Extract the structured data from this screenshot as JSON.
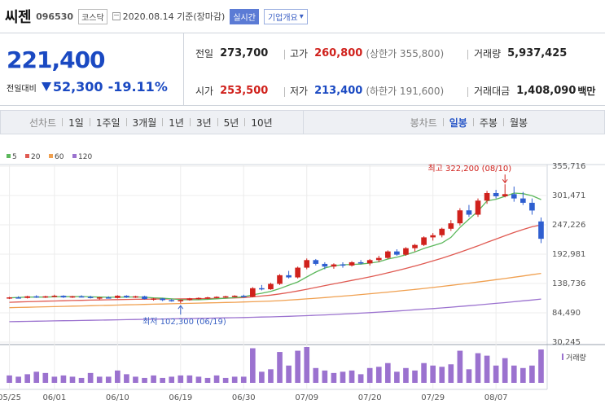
{
  "header": {
    "name": "씨젠",
    "code": "096530",
    "market": "코스닥",
    "date_text": "2020.08.14 기준(장마감)",
    "live_label": "실시간",
    "company_label": "기업개요",
    "company_arrow": "▾"
  },
  "summary": {
    "price": "221,400",
    "change_label": "전일대비",
    "change_amount": "52,300",
    "change_percent": "-19.11%",
    "prev_label": "전일",
    "prev_value": "273,700",
    "high_label": "고가",
    "high_value": "260,800",
    "upper_limit": "(상한가 355,800)",
    "volume_label": "거래량",
    "volume_value": "5,937,425",
    "open_label": "시가",
    "open_value": "253,500",
    "low_label": "저가",
    "low_value": "213,400",
    "lower_limit": "(하한가 191,600)",
    "amount_label": "거래대금",
    "amount_value": "1,408,090",
    "amount_unit": "백만"
  },
  "toolbar": {
    "line_chart_label": "선차트",
    "periods": [
      "1일",
      "1주일",
      "3개월",
      "1년",
      "3년",
      "5년",
      "10년"
    ],
    "candle_label": "봉차트",
    "candle_periods": [
      "일봉",
      "주봉",
      "월봉"
    ],
    "candle_active": "일봉"
  },
  "chart_data": {
    "type": "candlestick",
    "legend": [
      {
        "name": "5",
        "color": "#5cb85c"
      },
      {
        "name": "20",
        "color": "#e05a52"
      },
      {
        "name": "60",
        "color": "#f0a050"
      },
      {
        "name": "120",
        "color": "#9b72cf"
      }
    ],
    "y_ticks": [
      "355,716",
      "301,471",
      "247,226",
      "192,981",
      "138,736",
      "84,490",
      "30,245"
    ],
    "y_tick_values": [
      355716,
      301471,
      247226,
      192981,
      138736,
      84490,
      30245
    ],
    "ylim": [
      30245,
      355716
    ],
    "x_ticks": [
      {
        "label": "05/25",
        "index": 0
      },
      {
        "label": "06/01",
        "index": 5
      },
      {
        "label": "06/10",
        "index": 12
      },
      {
        "label": "06/19",
        "index": 19
      },
      {
        "label": "06/30",
        "index": 26
      },
      {
        "label": "07/09",
        "index": 33
      },
      {
        "label": "07/20",
        "index": 40
      },
      {
        "label": "07/29",
        "index": 47
      },
      {
        "label": "08/07",
        "index": 54
      }
    ],
    "high_note": "최고 322,200 (08/10)",
    "high_index": 55,
    "high_value": 322200,
    "low_note": "최저 102,300 (06/19)",
    "low_index": 19,
    "low_value": 102300,
    "volume_label": "거래량",
    "candles": [
      [
        112000,
        114000,
        110000,
        113000,
        6
      ],
      [
        113000,
        115000,
        111000,
        112000,
        5
      ],
      [
        112000,
        116000,
        111000,
        115000,
        7
      ],
      [
        115000,
        117000,
        112000,
        113000,
        9
      ],
      [
        113000,
        116000,
        112000,
        115000,
        8
      ],
      [
        115000,
        118000,
        113000,
        116000,
        5
      ],
      [
        116000,
        117000,
        112000,
        113000,
        6
      ],
      [
        113000,
        116000,
        112000,
        115000,
        5
      ],
      [
        115000,
        117000,
        113000,
        114000,
        4
      ],
      [
        114000,
        116000,
        111000,
        112000,
        8
      ],
      [
        112000,
        114000,
        109000,
        113000,
        5
      ],
      [
        113000,
        115000,
        111000,
        112000,
        5
      ],
      [
        112000,
        117000,
        111000,
        116000,
        10
      ],
      [
        116000,
        117000,
        112000,
        113000,
        7
      ],
      [
        113000,
        116000,
        112000,
        115000,
        5
      ],
      [
        115000,
        116000,
        109000,
        110000,
        4
      ],
      [
        110000,
        112000,
        107000,
        111000,
        6
      ],
      [
        111000,
        112000,
        106000,
        108000,
        4
      ],
      [
        108000,
        110000,
        105000,
        107000,
        5
      ],
      [
        107000,
        109000,
        102300,
        108000,
        6
      ],
      [
        108000,
        112000,
        107000,
        111000,
        6
      ],
      [
        111000,
        113000,
        109000,
        112000,
        5
      ],
      [
        112000,
        114000,
        110000,
        113000,
        4
      ],
      [
        113000,
        115000,
        111000,
        114000,
        6
      ],
      [
        114000,
        116000,
        112000,
        115000,
        4
      ],
      [
        115000,
        117000,
        113000,
        116000,
        5
      ],
      [
        116000,
        118000,
        113000,
        114000,
        5
      ],
      [
        114000,
        132000,
        113000,
        130000,
        28
      ],
      [
        130000,
        136000,
        126000,
        128000,
        9
      ],
      [
        128000,
        140000,
        127000,
        138000,
        11
      ],
      [
        138000,
        156000,
        136000,
        154000,
        25
      ],
      [
        154000,
        162000,
        148000,
        150000,
        14
      ],
      [
        150000,
        170000,
        148000,
        168000,
        26
      ],
      [
        168000,
        185000,
        165000,
        182000,
        29
      ],
      [
        182000,
        184000,
        172000,
        175000,
        12
      ],
      [
        175000,
        178000,
        165000,
        170000,
        10
      ],
      [
        170000,
        176000,
        166000,
        174000,
        8
      ],
      [
        174000,
        178000,
        168000,
        172000,
        9
      ],
      [
        172000,
        180000,
        170000,
        178000,
        10
      ],
      [
        178000,
        182000,
        174000,
        176000,
        7
      ],
      [
        176000,
        184000,
        172000,
        182000,
        12
      ],
      [
        182000,
        190000,
        178000,
        186000,
        13
      ],
      [
        186000,
        200000,
        184000,
        198000,
        16
      ],
      [
        198000,
        202000,
        190000,
        192000,
        9
      ],
      [
        192000,
        206000,
        190000,
        204000,
        12
      ],
      [
        204000,
        212000,
        198000,
        210000,
        10
      ],
      [
        210000,
        226000,
        208000,
        224000,
        16
      ],
      [
        224000,
        232000,
        218000,
        228000,
        14
      ],
      [
        228000,
        242000,
        224000,
        240000,
        13
      ],
      [
        240000,
        256000,
        236000,
        250000,
        15
      ],
      [
        250000,
        278000,
        246000,
        274000,
        26
      ],
      [
        274000,
        284000,
        262000,
        266000,
        11
      ],
      [
        266000,
        296000,
        262000,
        292000,
        24
      ],
      [
        292000,
        310000,
        286000,
        306000,
        22
      ],
      [
        306000,
        312000,
        296000,
        300000,
        14
      ],
      [
        300000,
        322200,
        298000,
        304000,
        20
      ],
      [
        304000,
        318000,
        290000,
        296000,
        14
      ],
      [
        296000,
        308000,
        284000,
        288000,
        12
      ],
      [
        288000,
        296000,
        266000,
        273700,
        14
      ],
      [
        253500,
        260800,
        213400,
        221400,
        27
      ]
    ],
    "ma5": [
      112,
      113,
      113.5,
      113.6,
      113.6,
      114,
      114.3,
      114.4,
      114.6,
      114,
      113.5,
      113.2,
      113.4,
      113.6,
      113.8,
      113.2,
      112.2,
      111.6,
      110.2,
      108.8,
      108.6,
      108.6,
      109.4,
      110.4,
      111.4,
      112.6,
      114,
      117.8,
      120.6,
      124,
      129.2,
      135.6,
      141.6,
      150.8,
      159.8,
      167.4,
      171.4,
      173.4,
      174,
      174.6,
      176.4,
      178.8,
      184,
      187.4,
      192,
      197,
      203.6,
      208.6,
      213.6,
      224,
      242.4,
      257.6,
      272.4,
      291.6,
      294.6,
      300,
      306,
      305,
      301,
      294
    ],
    "ma20": [
      104,
      104.5,
      105,
      105.5,
      106,
      106.4,
      106.8,
      107.2,
      107.6,
      108,
      108.3,
      108.6,
      108.9,
      109.2,
      109.5,
      109.7,
      109.9,
      110,
      110.1,
      110.2,
      110.4,
      110.6,
      110.9,
      111.2,
      111.5,
      112,
      112.7,
      114,
      115.5,
      117.2,
      119.4,
      122,
      124.8,
      128,
      131.4,
      134.8,
      138,
      141.2,
      144.4,
      147.6,
      151,
      154.6,
      158.4,
      162.4,
      166.6,
      171,
      175.6,
      180.4,
      185.4,
      190.8,
      196.6,
      202.4,
      208.4,
      214.8,
      220.8,
      227,
      233,
      238.6,
      243.6,
      247
    ],
    "ma60": [
      94,
      94.4,
      94.8,
      95.2,
      95.6,
      96,
      96.4,
      96.8,
      97.2,
      97.6,
      98,
      98.4,
      98.8,
      99.2,
      99.6,
      100,
      100.4,
      100.8,
      101.2,
      101.6,
      102,
      102.4,
      102.8,
      103.2,
      103.6,
      104,
      104.5,
      105,
      105.6,
      106.2,
      107,
      108,
      109,
      110.2,
      111.4,
      112.7,
      114,
      115.4,
      116.8,
      118.2,
      119.7,
      121.2,
      122.8,
      124.4,
      126.1,
      127.8,
      129.6,
      131.4,
      133.3,
      135.2,
      137.2,
      139.3,
      141.4,
      143.6,
      145.8,
      148,
      150.3,
      152.6,
      155,
      157.4
    ],
    "ma120": [
      68,
      68.3,
      68.6,
      68.9,
      69.2,
      69.5,
      69.8,
      70.1,
      70.4,
      70.7,
      71,
      71.3,
      71.6,
      71.9,
      72.2,
      72.5,
      72.8,
      73.1,
      73.4,
      73.7,
      74,
      74.3,
      74.6,
      74.9,
      75.2,
      75.5,
      75.8,
      76.2,
      76.6,
      77,
      77.5,
      78,
      78.6,
      79.2,
      79.9,
      80.6,
      81.4,
      82.2,
      83,
      83.9,
      84.8,
      85.8,
      86.8,
      87.8,
      88.9,
      90,
      91.2,
      92.4,
      93.6,
      94.9,
      96.2,
      97.6,
      99,
      100.4,
      101.9,
      103.4,
      105,
      106.6,
      108.2,
      109.9
    ]
  }
}
